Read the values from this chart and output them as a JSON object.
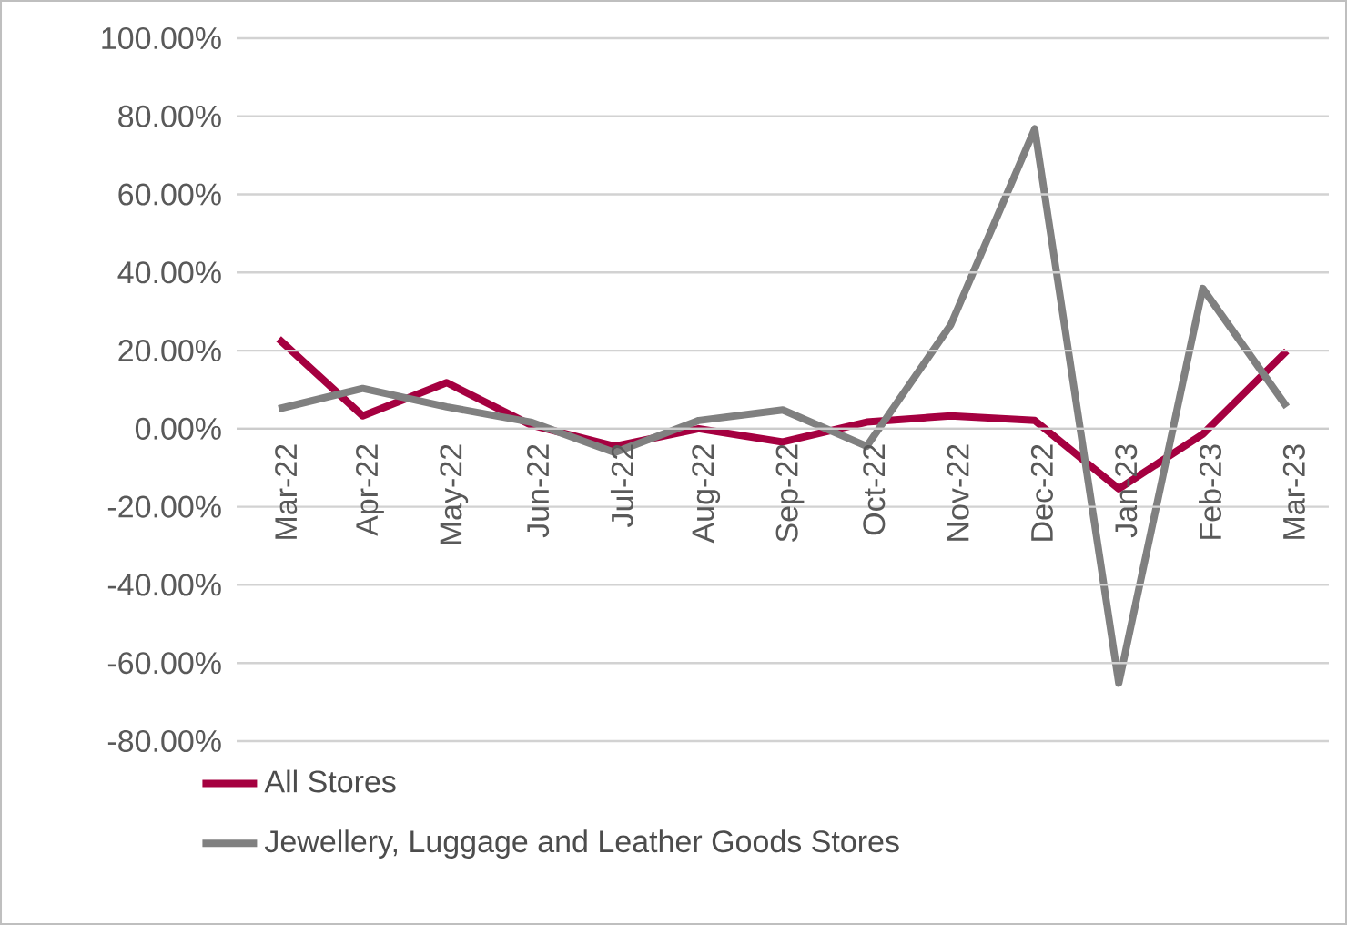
{
  "chart_data": {
    "type": "line",
    "categories": [
      "Mar-22",
      "Apr-22",
      "May-22",
      "Jun-22",
      "Jul-22",
      "Aug-22",
      "Sep-22",
      "Oct-22",
      "Nov-22",
      "Dec-22",
      "Jan-23",
      "Feb-23",
      "Mar-23"
    ],
    "series": [
      {
        "name": "All Stores",
        "color": "#a50040",
        "values": [
          23,
          3.3,
          11.8,
          1,
          -4.5,
          0,
          -3.4,
          1.7,
          3.3,
          2.1,
          -15.4,
          -1.4,
          19.9
        ]
      },
      {
        "name": "Jewellery, Luggage and Leather Goods Stores",
        "color": "#808080",
        "values": [
          5.1,
          10.3,
          5.6,
          1.7,
          -6.1,
          2.1,
          4.8,
          -4.5,
          26.6,
          76.8,
          -65.2,
          35.9,
          5.6
        ]
      }
    ],
    "ylim": [
      -80,
      100
    ],
    "yticks": [
      {
        "value": -80,
        "label": "-80.00%"
      },
      {
        "value": -60,
        "label": "-60.00%"
      },
      {
        "value": -40,
        "label": "-40.00%"
      },
      {
        "value": -20,
        "label": "-20.00%"
      },
      {
        "value": 0,
        "label": "0.00%"
      },
      {
        "value": 20,
        "label": "20.00%"
      },
      {
        "value": 40,
        "label": "40.00%"
      },
      {
        "value": 60,
        "label": "60.00%"
      },
      {
        "value": 80,
        "label": "80.00%"
      },
      {
        "value": 100,
        "label": "100.00%"
      }
    ],
    "grid": "y",
    "legend": "bottom",
    "marker": "none",
    "line_style": "solid"
  }
}
